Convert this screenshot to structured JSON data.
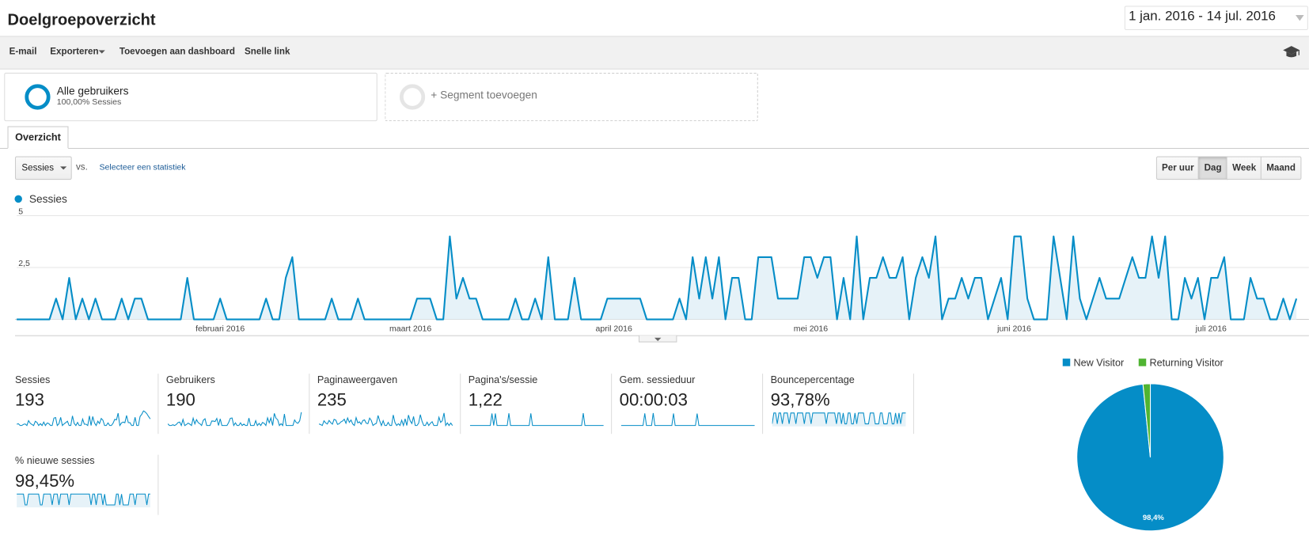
{
  "header": {
    "title": "Doelgroepoverzicht",
    "date_range": "1 jan. 2016 - 14 jul. 2016"
  },
  "toolbar": [
    "E-mail",
    "Exporteren",
    "Toevoegen aan dashboard",
    "Snelle link"
  ],
  "segments": [
    {
      "name": "Alle gebruikers",
      "detail": "100,00% Sessies"
    },
    {
      "name": "+ Segment toevoegen"
    }
  ],
  "tab": "Overzicht",
  "metric_selector": {
    "selected": "Sessies",
    "vs": "vs.",
    "link": "Selecteer een statistiek"
  },
  "intervals": [
    "Per uur",
    "Dag",
    "Week",
    "Maand"
  ],
  "active_interval": "Dag",
  "chart_data": [
    {
      "type": "line",
      "series": [
        {
          "name": "Sessies",
          "color": "#058dc7",
          "values": [
            0,
            0,
            0,
            0,
            0,
            0,
            1,
            0,
            2,
            0,
            1,
            0,
            1,
            0,
            0,
            0,
            1,
            0,
            1,
            1,
            0,
            0,
            0,
            0,
            0,
            0,
            2,
            0,
            0,
            0,
            0,
            1,
            0,
            0,
            0,
            0,
            0,
            0,
            1,
            0,
            0,
            2,
            3,
            0,
            0,
            0,
            0,
            0,
            1,
            0,
            0,
            0,
            1,
            0,
            0,
            0,
            0,
            0,
            0,
            0,
            0,
            1,
            1,
            1,
            0,
            0,
            4,
            1,
            2,
            1,
            1,
            0,
            0,
            0,
            0,
            0,
            1,
            0,
            0,
            1,
            0,
            3,
            0,
            0,
            0,
            2,
            0,
            0,
            0,
            0,
            1,
            1,
            1,
            1,
            1,
            1,
            0,
            0,
            0,
            0,
            0,
            1,
            0,
            3,
            1,
            3,
            1,
            3,
            0,
            2,
            2,
            0,
            0,
            3,
            3,
            3,
            1,
            1,
            1,
            1,
            3,
            3,
            2,
            3,
            3,
            0,
            2,
            0,
            4,
            0,
            2,
            2,
            3,
            2,
            2,
            3,
            0,
            2,
            3,
            2,
            4,
            0,
            1,
            1,
            2,
            1,
            2,
            2,
            0,
            1,
            2,
            0,
            4,
            4,
            1,
            0,
            0,
            0,
            4,
            2,
            0,
            4,
            1,
            0,
            1,
            2,
            1,
            1,
            1,
            2,
            3,
            2,
            2,
            4,
            2,
            4,
            0,
            0,
            2,
            1,
            2,
            0,
            2,
            2,
            3,
            0,
            0,
            0,
            2,
            1,
            1,
            0,
            0,
            1,
            0,
            1
          ]
        }
      ],
      "xlim": [
        0,
        195
      ],
      "xticks": [
        {
          "value": 31,
          "label": "februari 2016"
        },
        {
          "value": 60,
          "label": "maart 2016"
        },
        {
          "value": 91,
          "label": "april 2016"
        },
        {
          "value": 121,
          "label": "mei 2016"
        },
        {
          "value": 152,
          "label": "juni 2016"
        },
        {
          "value": 182,
          "label": "juli 2016"
        }
      ],
      "ylim": [
        0,
        5
      ],
      "yticks": [
        {
          "value": 2.5,
          "label": "2,5"
        },
        5
      ],
      "grid": true
    },
    {
      "type": "pie",
      "categories": [
        "New Visitor",
        "Returning Visitor"
      ],
      "values": [
        98.4,
        1.6
      ],
      "value_labels": [
        "98,4%",
        null
      ],
      "colors": [
        "#058dc7",
        "#50b432"
      ]
    }
  ],
  "metrics": [
    {
      "label": "Sessies",
      "value": "193"
    },
    {
      "label": "Gebruikers",
      "value": "190"
    },
    {
      "label": "Paginaweergaven",
      "value": "235"
    },
    {
      "label": "Pagina's/sessie",
      "value": "1,22"
    },
    {
      "label": "Gem. sessieduur",
      "value": "00:00:03"
    },
    {
      "label": "Bouncepercentage",
      "value": "93,78%"
    },
    {
      "label": "% nieuwe sessies",
      "value": "98,45%"
    }
  ]
}
